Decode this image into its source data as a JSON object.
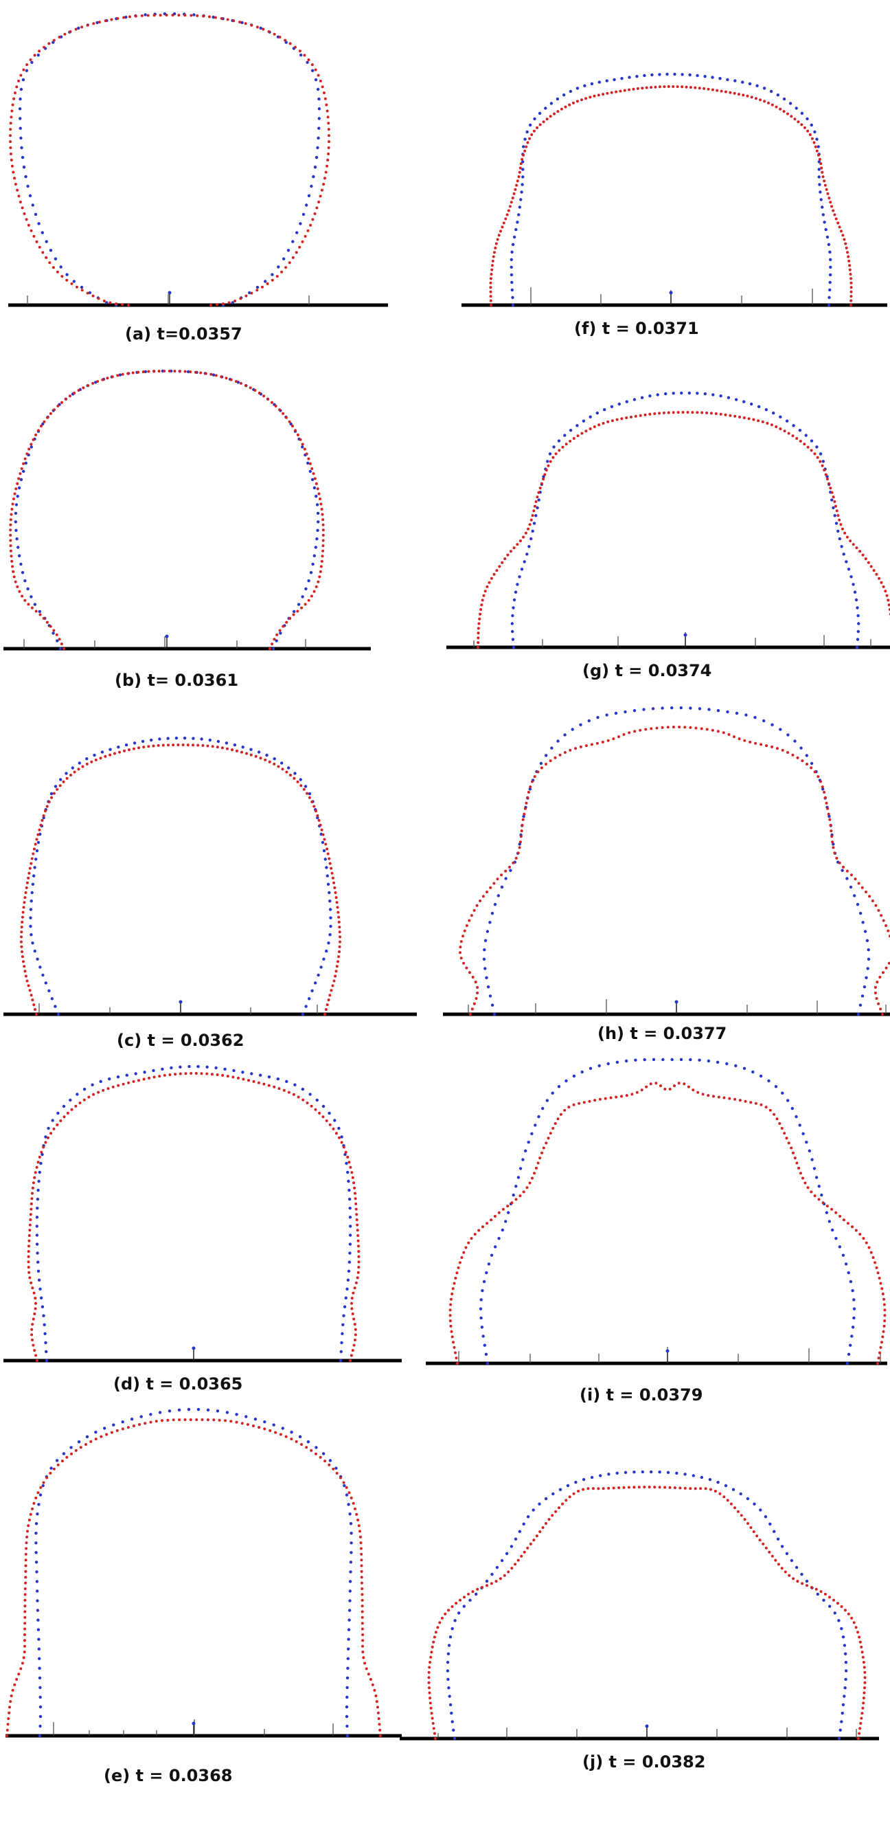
{
  "figure": {
    "red_color": "#d42222",
    "blue_color": "#2536c8",
    "wall_color": "#000000",
    "panels": [
      {
        "id": "a",
        "caption": "(a) t=0.0357"
      },
      {
        "id": "b",
        "caption": "(b) t= 0.0361"
      },
      {
        "id": "c",
        "caption": "(c) t = 0.0362"
      },
      {
        "id": "d",
        "caption": "(d) t = 0.0365"
      },
      {
        "id": "e",
        "caption": "(e) t = 0.0368"
      },
      {
        "id": "f",
        "caption": "(f) t = 0.0371"
      },
      {
        "id": "g",
        "caption": "(g) t = 0.0374"
      },
      {
        "id": "h",
        "caption": "(h) t = 0.0377"
      },
      {
        "id": "i",
        "caption": "(i) t = 0.0379"
      },
      {
        "id": "j",
        "caption": "(j) t = 0.0382"
      }
    ]
  }
}
